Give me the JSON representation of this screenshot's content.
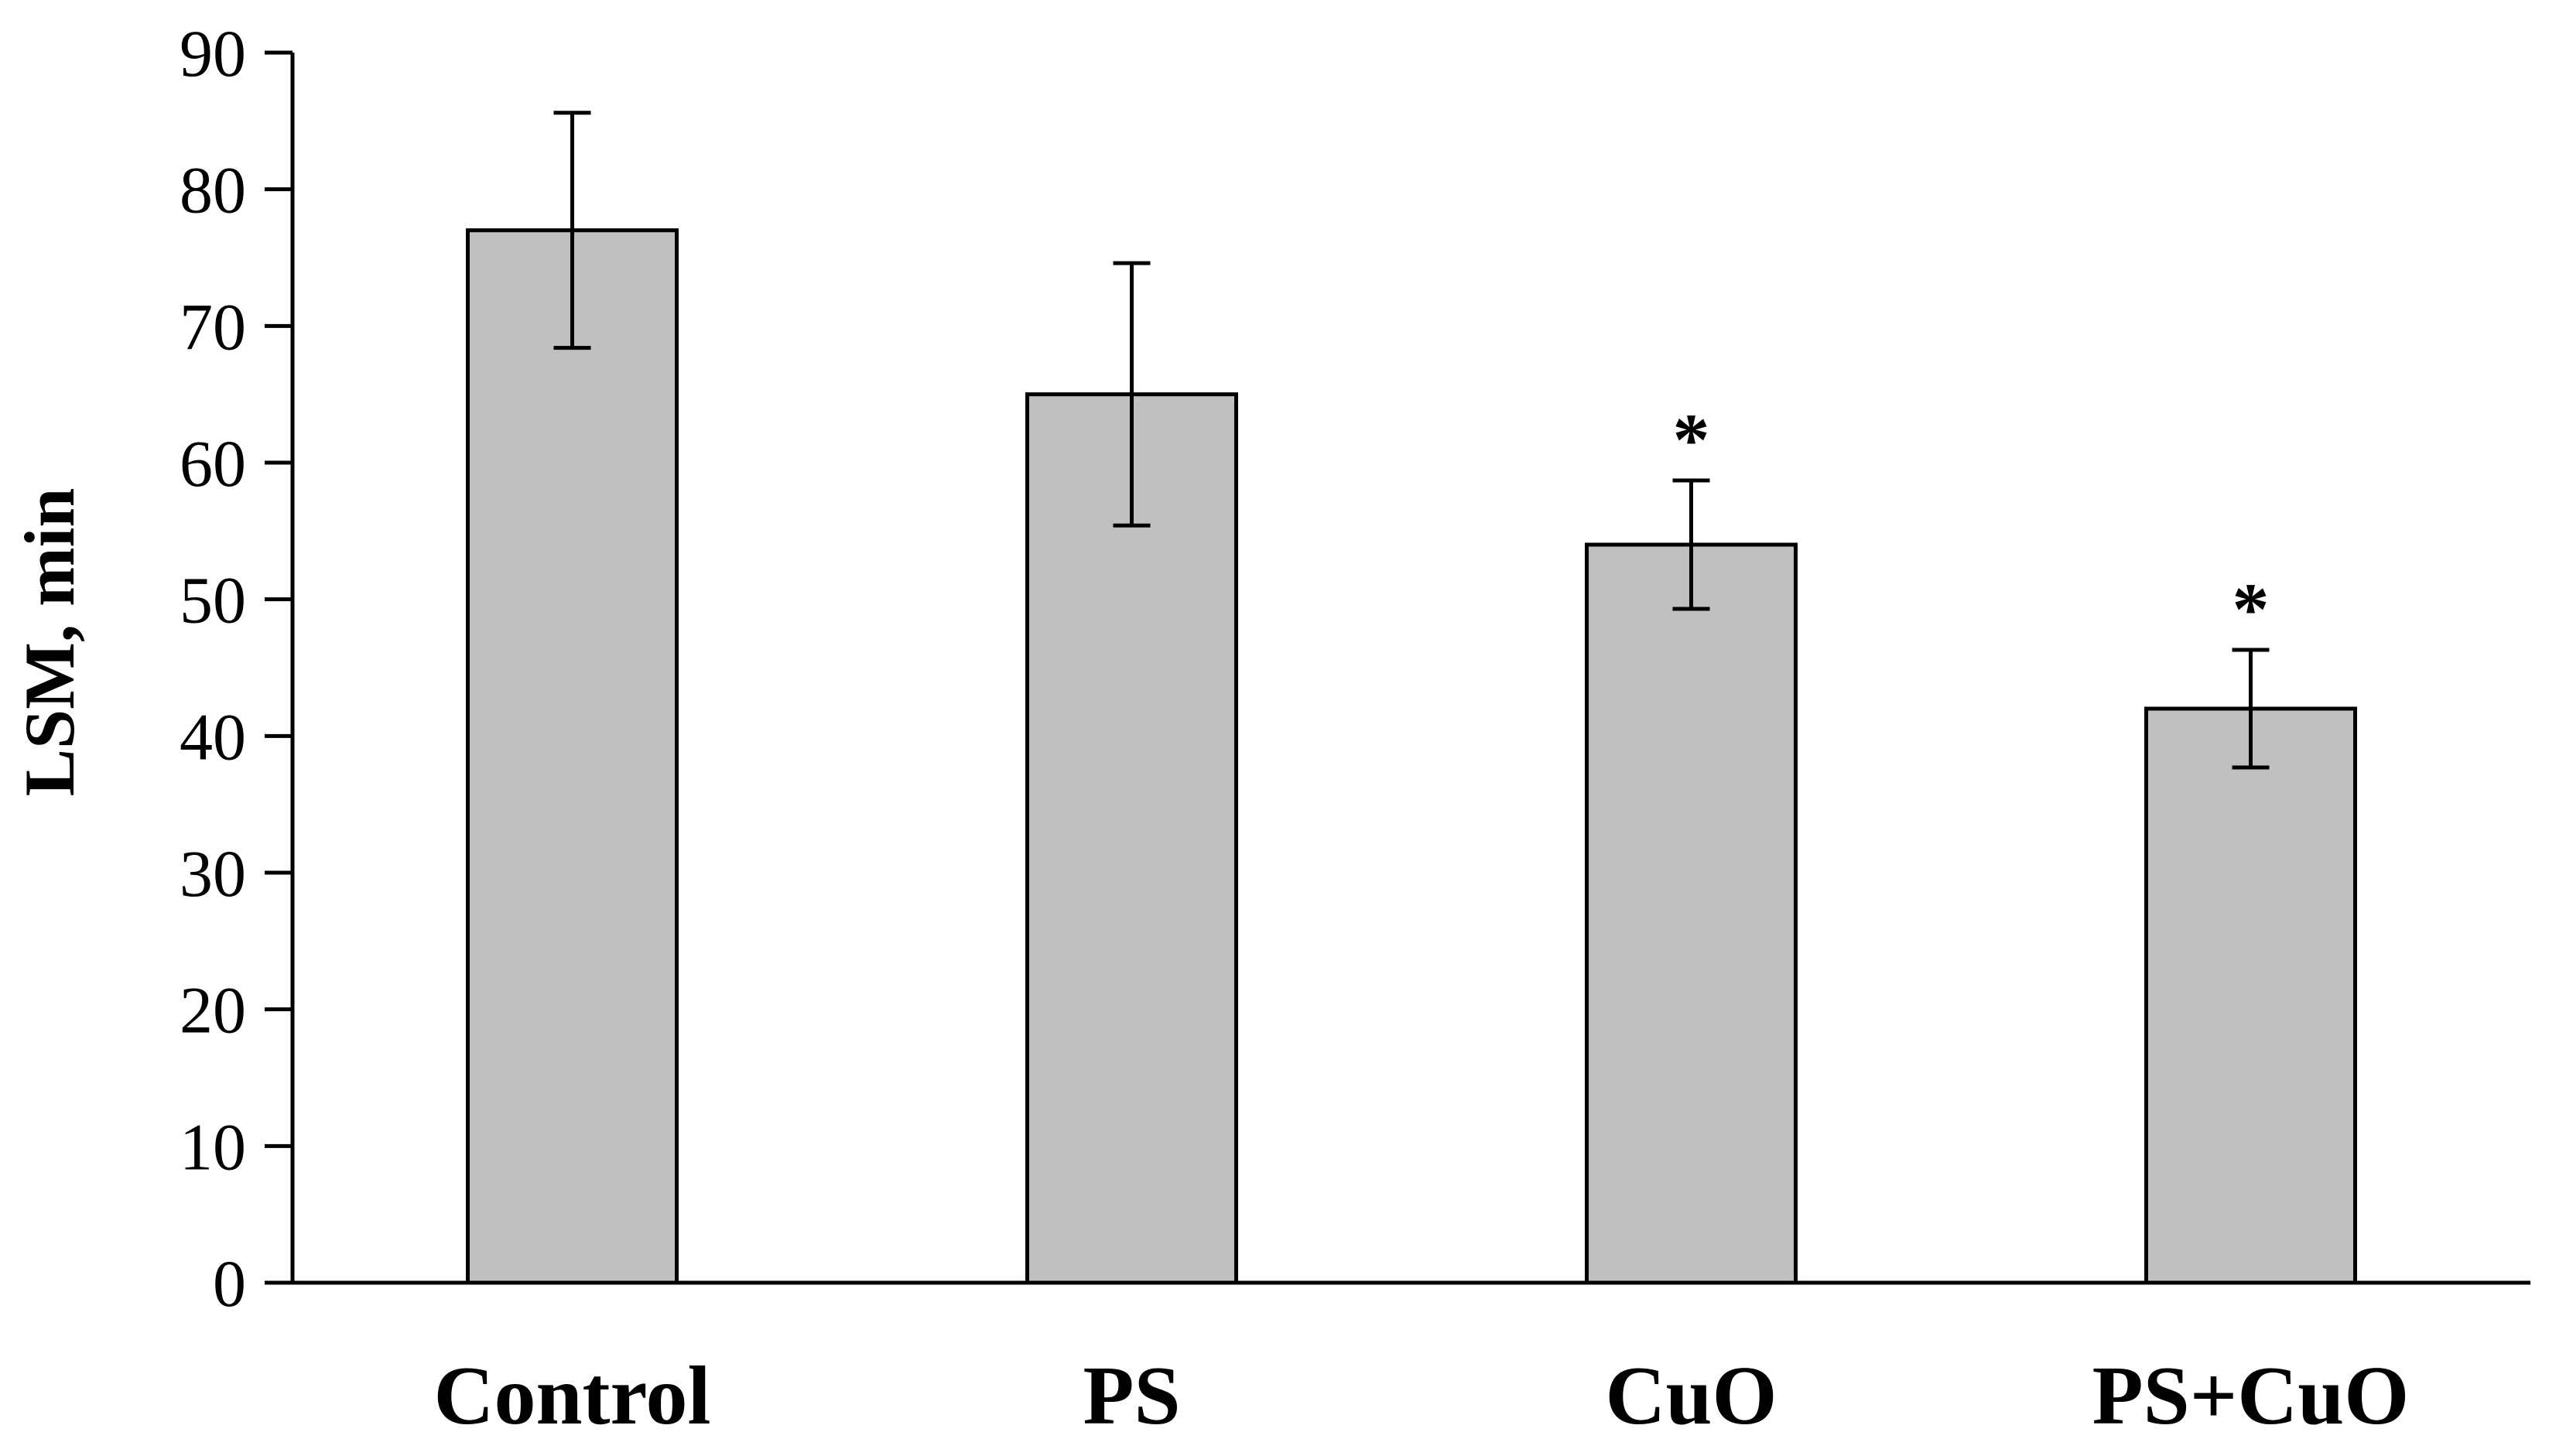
{
  "chart_data": {
    "type": "bar",
    "title": "",
    "xlabel": "",
    "ylabel": "LSM, min",
    "ylim": [
      0,
      90
    ],
    "yticks": [
      0,
      10,
      20,
      30,
      40,
      50,
      60,
      70,
      80,
      90
    ],
    "grid": false,
    "categories": [
      "Control",
      "PS",
      "CuO",
      "PS+CuO"
    ],
    "values": [
      77,
      65,
      54,
      42
    ],
    "errors": [
      8.6,
      9.6,
      4.7,
      4.3
    ],
    "annotations": [
      "",
      "",
      "*",
      "*"
    ],
    "colors": {
      "bar_fill": "#c0c0c0",
      "bar_stroke": "#000000",
      "axis": "#000000"
    }
  }
}
